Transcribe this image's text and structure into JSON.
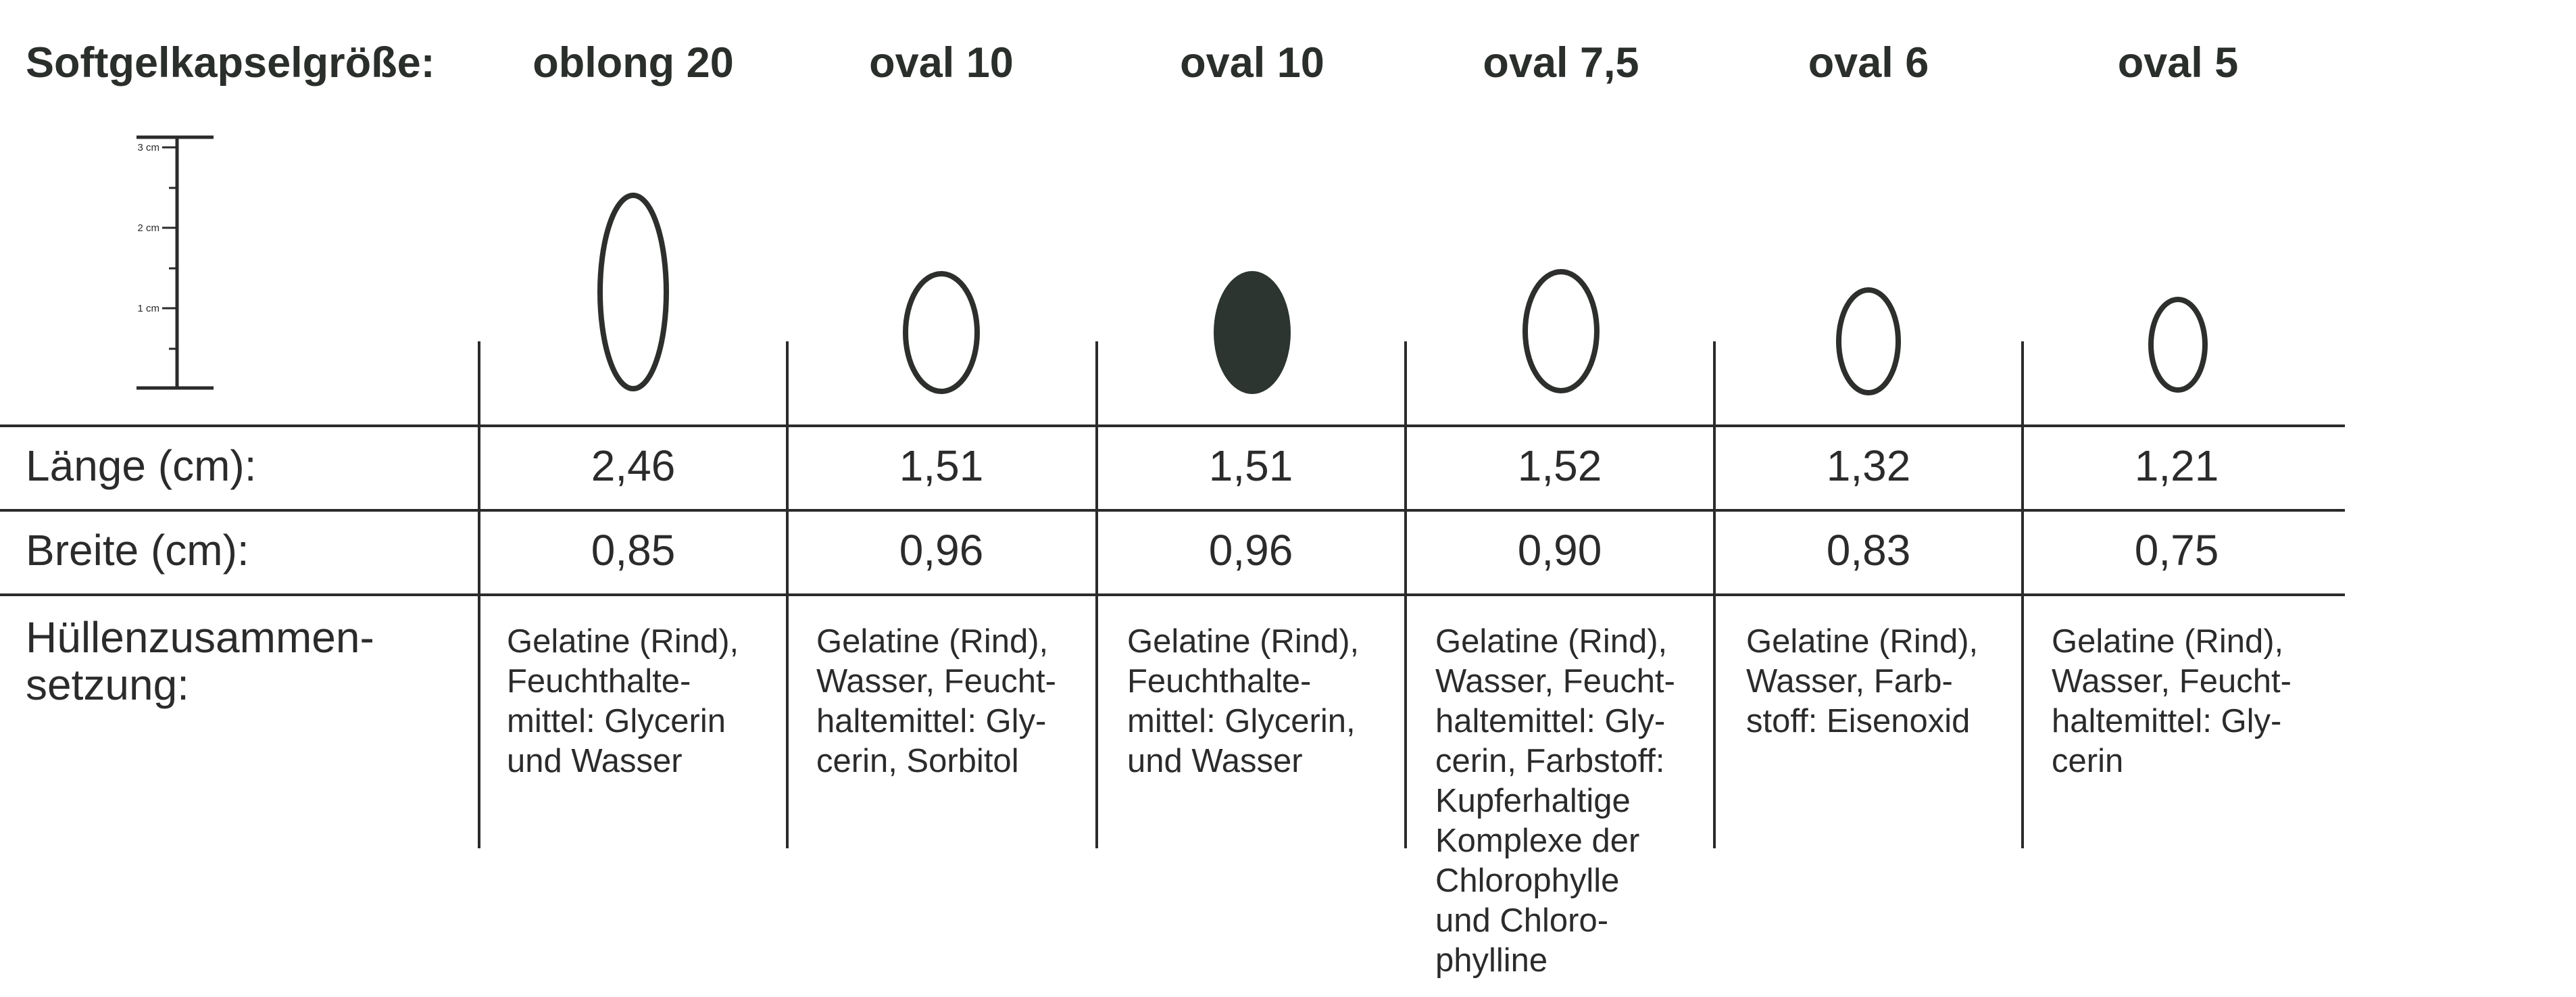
{
  "header": {
    "title": "Softgelkapselgröße:",
    "capsules": [
      {
        "name": "oblong 20",
        "filled": false,
        "color": "#2c2f2b"
      },
      {
        "name": "oval 10",
        "filled": false,
        "color": "#2c2f2b"
      },
      {
        "name": "oval 10",
        "filled": true,
        "color": "#2c352f"
      },
      {
        "name": "oval 7,5",
        "filled": false,
        "color": "#2c2f2b"
      },
      {
        "name": "oval 6",
        "filled": false,
        "color": "#2c2f2b"
      },
      {
        "name": "oval 5",
        "filled": false,
        "color": "#2c2f2b"
      }
    ]
  },
  "scale": {
    "label_3": "3 cm",
    "label_2": "2 cm",
    "label_1": "1 cm"
  },
  "rows": {
    "length_label": "Länge (cm):",
    "length_values": [
      "2,46",
      "1,51",
      "1,51",
      "1,52",
      "1,32",
      "1,21"
    ],
    "width_label": "Breite (cm):",
    "width_values": [
      "0,85",
      "0,96",
      "0,96",
      "0,90",
      "0,83",
      "0,75"
    ],
    "composition_label_1": "Hüllenzusammen-",
    "composition_label_2": "setzung:",
    "composition": [
      [
        "Gelatine (Rind),",
        "Feuchthalte-",
        "mittel: Glycerin",
        "und Wasser"
      ],
      [
        "Gelatine (Rind),",
        "Wasser, Feucht-",
        "haltemittel: Gly-",
        "cerin, Sorbitol"
      ],
      [
        "Gelatine (Rind),",
        "Feuchthalte-",
        "mittel: Glycerin,",
        "und Wasser"
      ],
      [
        "Gelatine (Rind),",
        "Wasser, Feucht-",
        "haltemittel: Gly-",
        "cerin, Farbstoff:",
        "Kupferhaltige",
        "Komplexe der",
        "Chlorophylle",
        "und Chloro-",
        "phylline"
      ],
      [
        "Gelatine (Rind),",
        "Wasser, Farb-",
        "stoff: Eisenoxid"
      ],
      [
        "Gelatine (Rind),",
        "Wasser, Feucht-",
        "haltemittel: Gly-",
        "cerin"
      ]
    ]
  }
}
